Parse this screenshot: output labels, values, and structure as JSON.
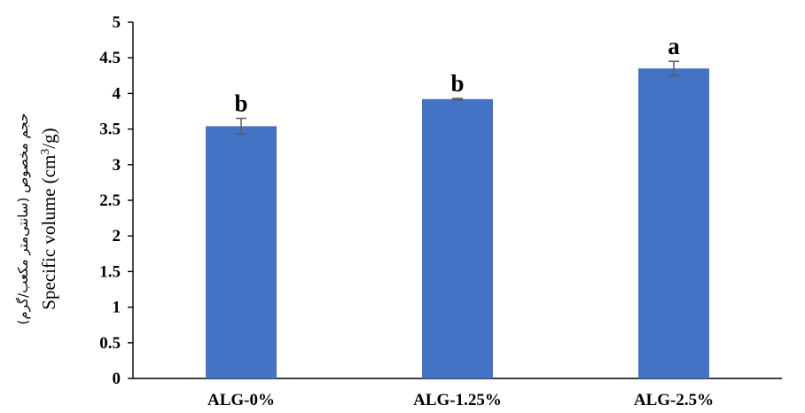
{
  "chart_data": {
    "type": "bar",
    "categories": [
      "ALG-0%",
      "ALG-1.25%",
      "ALG-2.5%"
    ],
    "values": [
      3.54,
      3.92,
      4.35
    ],
    "error": [
      0.11,
      0.01,
      0.1
    ],
    "significance_labels": [
      "b",
      "b",
      "a"
    ],
    "ylim": [
      0,
      5
    ],
    "yticks": [
      "0",
      "0.5",
      "1",
      "1.5",
      "2",
      "2.5",
      "3",
      "3.5",
      "4",
      "4.5",
      "5"
    ],
    "ylabel_persian": "حجم مخصوص (سانتی‌متر مکعب/گرم)",
    "ylabel_prefix": "Specific volume (cm",
    "ylabel_superscript": "3",
    "ylabel_suffix": "/g)",
    "bar_color": "#4472C4",
    "errorbar_color": "#595959",
    "grid": false,
    "legend": "none"
  }
}
